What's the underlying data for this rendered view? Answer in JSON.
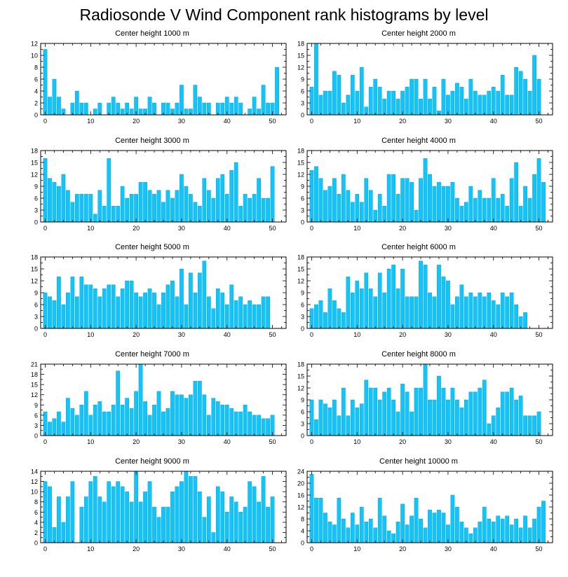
{
  "title": "Radiosonde V Wind Component rank histograms by level",
  "colors": {
    "bar": "#11C4F9",
    "bar_edge": "#0097CC",
    "axis": "#000000"
  },
  "chart_data": [
    {
      "type": "bar",
      "title": "Center height 1000 m",
      "ylim": [
        0,
        12
      ],
      "yticks": [
        0,
        2,
        4,
        6,
        8,
        10,
        12
      ],
      "xticks": [
        0,
        10,
        20,
        30,
        40,
        50
      ],
      "values": [
        11,
        3,
        6,
        3,
        1,
        0,
        2,
        4,
        2,
        2,
        0,
        1,
        2,
        0,
        2,
        3,
        2,
        1,
        2,
        1,
        3,
        1,
        1,
        3,
        2,
        0,
        2,
        2,
        1,
        2,
        5,
        1,
        1,
        5,
        3,
        2,
        2,
        0,
        2,
        2,
        3,
        2,
        3,
        2,
        0,
        1,
        3,
        1,
        5,
        2,
        2,
        8
      ]
    },
    {
      "type": "bar",
      "title": "Center height 2000 m",
      "ylim": [
        0,
        18
      ],
      "yticks": [
        0,
        3,
        6,
        9,
        12,
        15,
        18
      ],
      "xticks": [
        0,
        10,
        20,
        30,
        40,
        50
      ],
      "values": [
        7,
        18,
        5,
        6,
        6,
        11,
        10,
        3,
        5,
        10,
        6,
        12,
        2,
        7,
        9,
        7,
        4,
        6,
        6,
        4,
        6,
        7,
        9,
        9,
        4,
        9,
        4,
        7,
        1,
        9,
        5,
        6,
        8,
        7,
        4,
        9,
        6,
        5,
        5,
        6,
        7,
        6,
        10,
        5,
        5,
        12,
        11,
        9,
        6,
        15,
        9
      ]
    },
    {
      "type": "bar",
      "title": "Center height 3000 m",
      "ylim": [
        0,
        18
      ],
      "yticks": [
        0,
        3,
        6,
        9,
        12,
        15,
        18
      ],
      "xticks": [
        0,
        10,
        20,
        30,
        40,
        50
      ],
      "values": [
        16,
        11,
        10,
        9,
        12,
        8,
        5,
        7,
        7,
        7,
        7,
        2,
        8,
        4,
        16,
        4,
        4,
        9,
        6,
        7,
        7,
        10,
        10,
        8,
        7,
        8,
        5,
        8,
        6,
        8,
        12,
        9,
        7,
        5,
        4,
        11,
        8,
        6,
        11,
        12,
        7,
        13,
        15,
        4,
        7,
        6,
        7,
        11,
        6,
        6,
        14
      ]
    },
    {
      "type": "bar",
      "title": "Center height 4000 m",
      "ylim": [
        0,
        18
      ],
      "yticks": [
        0,
        3,
        6,
        9,
        12,
        15,
        18
      ],
      "xticks": [
        0,
        10,
        20,
        30,
        40,
        50
      ],
      "values": [
        13,
        14,
        11,
        8,
        9,
        11,
        7,
        12,
        8,
        5,
        7,
        5,
        11,
        8,
        3,
        7,
        4,
        12,
        12,
        7,
        11,
        11,
        10,
        3,
        11,
        16,
        12,
        9,
        10,
        9,
        9,
        10,
        6,
        4,
        5,
        9,
        6,
        8,
        6,
        6,
        11,
        6,
        7,
        4,
        11,
        15,
        4,
        9,
        6,
        12,
        16,
        10
      ]
    },
    {
      "type": "bar",
      "title": "Center height 5000 m",
      "ylim": [
        0,
        18
      ],
      "yticks": [
        0,
        3,
        6,
        9,
        12,
        15,
        18
      ],
      "xticks": [
        0,
        10,
        20,
        30,
        40,
        50
      ],
      "values": [
        9,
        8,
        7,
        13,
        6,
        9,
        13,
        8,
        13,
        11,
        11,
        10,
        8,
        10,
        11,
        11,
        8,
        10,
        12,
        12,
        9,
        8,
        9,
        10,
        9,
        6,
        9,
        11,
        12,
        8,
        15,
        6,
        14,
        9,
        14,
        17,
        8,
        5,
        10,
        9,
        6,
        11,
        7,
        8,
        6,
        7,
        6,
        6,
        8,
        8
      ]
    },
    {
      "type": "bar",
      "title": "Center height 6000 m",
      "ylim": [
        0,
        18
      ],
      "yticks": [
        0,
        3,
        6,
        9,
        12,
        15,
        18
      ],
      "xticks": [
        0,
        10,
        20,
        30,
        40,
        50
      ],
      "values": [
        5,
        6,
        7,
        4,
        10,
        7,
        5,
        4,
        13,
        9,
        12,
        10,
        14,
        10,
        8,
        14,
        9,
        15,
        16,
        10,
        15,
        8,
        8,
        8,
        17,
        16,
        9,
        8,
        16,
        13,
        12,
        6,
        8,
        11,
        8,
        9,
        8,
        9,
        8,
        9,
        7,
        6,
        9,
        8,
        9,
        6,
        3,
        4
      ]
    },
    {
      "type": "bar",
      "title": "Center height 7000 m",
      "ylim": [
        0,
        21
      ],
      "yticks": [
        0,
        3,
        6,
        9,
        12,
        15,
        18,
        21
      ],
      "xticks": [
        0,
        10,
        20,
        30,
        40,
        50
      ],
      "values": [
        7,
        4,
        5,
        7,
        4,
        11,
        8,
        6,
        9,
        13,
        6,
        9,
        10,
        7,
        7,
        9,
        19,
        9,
        11,
        8,
        13,
        21,
        10,
        6,
        9,
        13,
        7,
        8,
        13,
        12,
        12,
        11,
        12,
        16,
        16,
        12,
        6,
        11,
        10,
        9,
        9,
        8,
        7,
        7,
        9,
        7,
        6,
        6,
        5,
        5,
        6
      ]
    },
    {
      "type": "bar",
      "title": "Center height 8000 m",
      "ylim": [
        0,
        18
      ],
      "yticks": [
        0,
        3,
        6,
        9,
        12,
        15,
        18
      ],
      "xticks": [
        0,
        10,
        20,
        30,
        40,
        50
      ],
      "values": [
        9,
        4,
        9,
        8,
        7,
        9,
        5,
        12,
        5,
        9,
        7,
        8,
        14,
        12,
        12,
        9,
        11,
        12,
        9,
        6,
        13,
        11,
        6,
        12,
        12,
        18,
        9,
        9,
        15,
        12,
        9,
        12,
        9,
        7,
        9,
        11,
        11,
        12,
        14,
        3,
        5,
        7,
        11,
        11,
        12,
        9,
        10,
        5,
        5,
        5,
        6
      ]
    },
    {
      "type": "bar",
      "title": "Center height 9000 m",
      "ylim": [
        0,
        14
      ],
      "yticks": [
        0,
        2,
        4,
        6,
        8,
        10,
        12,
        14
      ],
      "xticks": [
        0,
        10,
        20,
        30,
        40,
        50
      ],
      "values": [
        12,
        11,
        3,
        9,
        4,
        9,
        12,
        0,
        7,
        9,
        12,
        13,
        9,
        8,
        12,
        11,
        12,
        11,
        10,
        8,
        14,
        8,
        10,
        12,
        7,
        5,
        7,
        7,
        10,
        11,
        12,
        14,
        13,
        13,
        10,
        5,
        9,
        2,
        11,
        10,
        6,
        9,
        8,
        6,
        7,
        12,
        11,
        8,
        13,
        7,
        9
      ]
    },
    {
      "type": "bar",
      "title": "Center height 10000 m",
      "ylim": [
        0,
        24
      ],
      "yticks": [
        0,
        4,
        8,
        12,
        16,
        20,
        24
      ],
      "xticks": [
        0,
        10,
        20,
        30,
        40,
        50
      ],
      "values": [
        23,
        15,
        15,
        10,
        7,
        6,
        15,
        8,
        5,
        10,
        6,
        12,
        7,
        8,
        5,
        15,
        9,
        4,
        3,
        7,
        13,
        6,
        9,
        15,
        8,
        5,
        11,
        10,
        11,
        10,
        6,
        16,
        12,
        7,
        5,
        3,
        5,
        7,
        12,
        8,
        7,
        9,
        8,
        9,
        6,
        8,
        5,
        9,
        5,
        8,
        12,
        14
      ]
    }
  ]
}
